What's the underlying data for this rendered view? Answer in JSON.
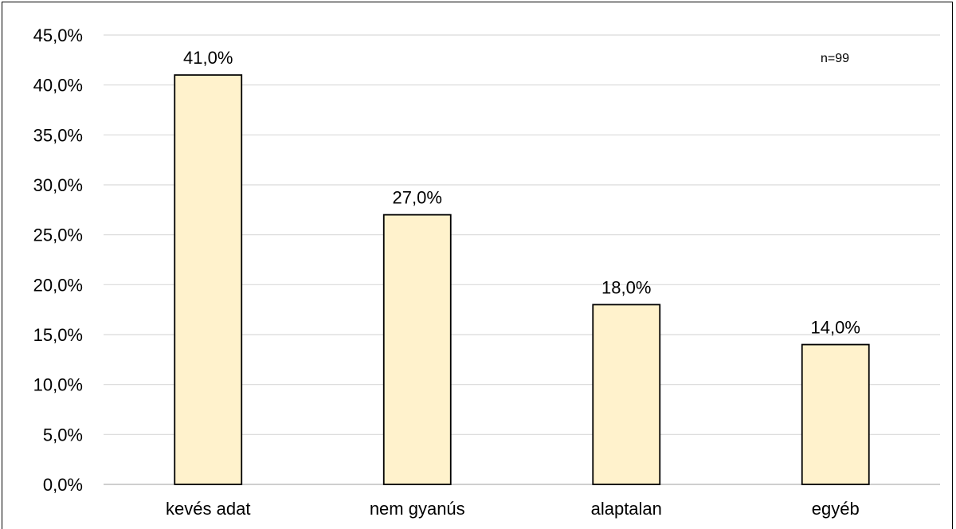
{
  "chart_data": {
    "type": "bar",
    "title": "",
    "xlabel": "",
    "ylabel": "",
    "categories": [
      "kevés adat",
      "nem gyanús",
      "alaptalan",
      "egyéb"
    ],
    "values": [
      41.0,
      27.0,
      18.0,
      14.0
    ],
    "data_labels": [
      "41,0%",
      "27,0%",
      "18,0%",
      "14,0%"
    ],
    "ylim": [
      0,
      45
    ],
    "y_ticks": [
      0,
      5,
      10,
      15,
      20,
      25,
      30,
      35,
      40,
      45
    ],
    "y_tick_labels": [
      "0,0%",
      "5,0%",
      "10,0%",
      "15,0%",
      "20,0%",
      "25,0%",
      "30,0%",
      "35,0%",
      "40,0%",
      "45,0%"
    ],
    "grid": true,
    "legend": "none",
    "annotation": "n=99",
    "colors": {
      "bar_fill": "#FFF2CC",
      "bar_stroke": "#000000",
      "grid": "#D9D9D9",
      "axis": "#BFBFBF"
    }
  }
}
